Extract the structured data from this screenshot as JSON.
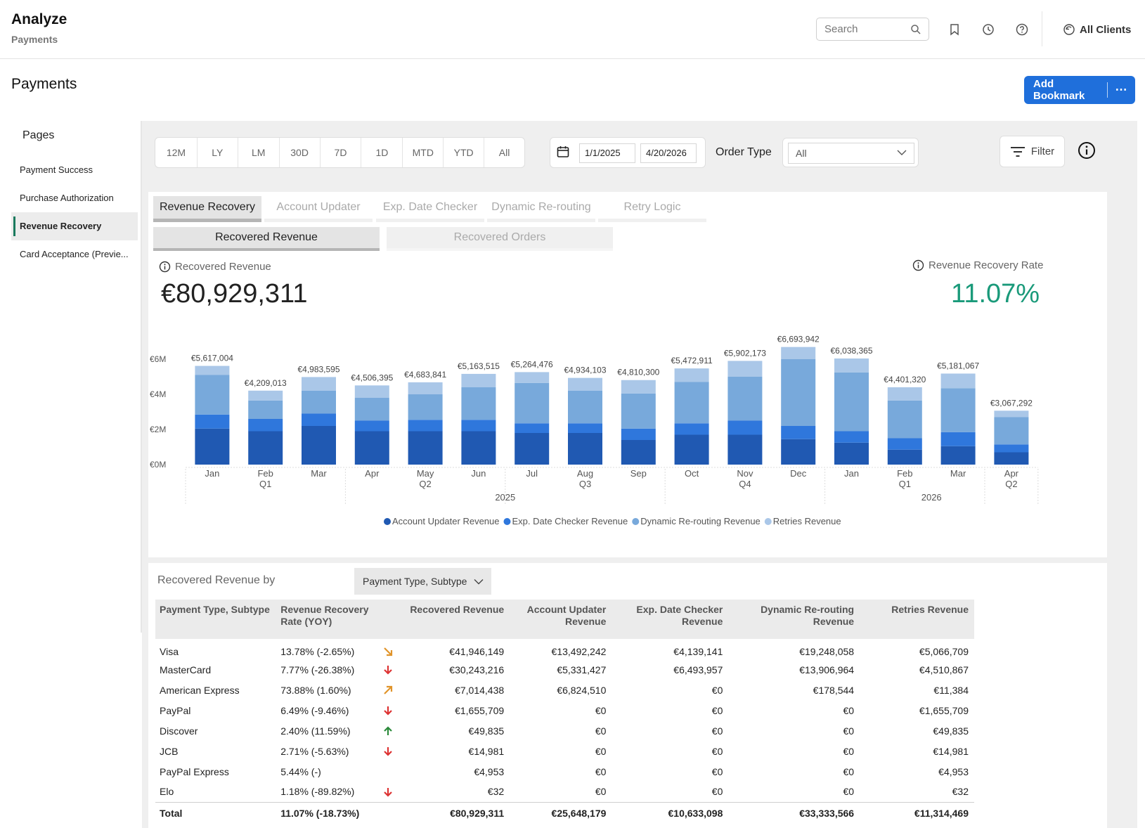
{
  "header": {
    "app_title": "Analyze",
    "app_subtitle": "Payments",
    "search_placeholder": "Search",
    "clients_label": "All Clients"
  },
  "page": {
    "title": "Payments",
    "add_bookmark": "Add Bookmark",
    "more": "⋯"
  },
  "sidebar": {
    "heading": "Pages",
    "items": [
      {
        "label": "Payment Success",
        "active": false
      },
      {
        "label": "Purchase Authorization",
        "active": false
      },
      {
        "label": "Revenue Recovery",
        "active": true
      },
      {
        "label": "Card Acceptance (Previe...",
        "active": false
      }
    ]
  },
  "filters": {
    "periods": [
      "12M",
      "LY",
      "LM",
      "30D",
      "7D",
      "1D",
      "MTD",
      "YTD",
      "All"
    ],
    "start_date": "1/1/2025",
    "end_date": "4/20/2026",
    "order_type_label": "Order Type",
    "order_type_value": "All",
    "filter_label": "Filter"
  },
  "tabs": [
    "Revenue Recovery",
    "Account Updater",
    "Exp. Date Checker",
    "Dynamic Re-routing",
    "Retry Logic"
  ],
  "subtabs": [
    "Recovered Revenue",
    "Recovered Orders"
  ],
  "kpis": {
    "recovered_label": "Recovered Revenue",
    "recovered_value": "€80,929,311",
    "rate_label": "Revenue Recovery Rate",
    "rate_value": "11.07%"
  },
  "colors": {
    "account_updater": "#2059b2",
    "exp_date_checker": "#2f77dc",
    "dynamic_rerouting": "#78a9db",
    "retries": "#aac7e8",
    "rate_green": "#1a9a7a",
    "primary_button": "#1f6fdb"
  },
  "chart_data": {
    "type": "bar",
    "stacked": true,
    "categories": [
      "Jan",
      "Feb",
      "Mar",
      "Apr",
      "May",
      "Jun",
      "Jul",
      "Aug",
      "Sep",
      "Oct",
      "Nov",
      "Dec",
      "Jan",
      "Feb",
      "Mar",
      "Apr"
    ],
    "quarter_labels": [
      "",
      "Q1",
      "",
      "",
      "Q2",
      "",
      "",
      "Q3",
      "",
      "",
      "Q4",
      "",
      "",
      "Q1",
      "",
      "Q2"
    ],
    "years": [
      {
        "label": "2025",
        "span": 12
      },
      {
        "label": "2026",
        "span": 4
      }
    ],
    "totals": [
      5617004,
      4209013,
      4983595,
      4506395,
      4683841,
      5163515,
      5264476,
      4934103,
      4810300,
      5472911,
      5902173,
      6693942,
      6038365,
      4401320,
      5181067,
      3067292
    ],
    "total_labels": [
      "€5,617,004",
      "€4,209,013",
      "€4,983,595",
      "€4,506,395",
      "€4,683,841",
      "€5,163,515",
      "€5,264,476",
      "€4,934,103",
      "€4,810,300",
      "€5,472,911",
      "€5,902,173",
      "€6,693,942",
      "€6,038,365",
      "€4,401,320",
      "€5,181,067",
      "€3,067,292"
    ],
    "series": [
      {
        "name": "Account Updater Revenue",
        "values": [
          2050000,
          1900000,
          2200000,
          1900000,
          1900000,
          1900000,
          1800000,
          1800000,
          1400000,
          1700000,
          1700000,
          1450000,
          1250000,
          850000,
          1050000,
          700000
        ]
      },
      {
        "name": "Exp. Date Checker Revenue",
        "values": [
          800000,
          700000,
          700000,
          600000,
          650000,
          650000,
          550000,
          550000,
          650000,
          650000,
          800000,
          750000,
          650000,
          650000,
          800000,
          450000
        ]
      },
      {
        "name": "Dynamic Re-routing Revenue",
        "values": [
          2250000,
          1050000,
          1300000,
          1300000,
          1450000,
          1850000,
          2300000,
          1850000,
          2000000,
          2350000,
          2500000,
          3800000,
          3350000,
          2150000,
          2500000,
          1550000
        ]
      },
      {
        "name": "Retries Revenue",
        "values": [
          517004,
          559013,
          783595,
          706395,
          683841,
          763515,
          614476,
          734103,
          760300,
          772911,
          902173,
          693942,
          788365,
          751320,
          831067,
          367292
        ]
      }
    ],
    "yticks": [
      "€0M",
      "€2M",
      "€4M",
      "€6M"
    ],
    "ylim": [
      0,
      6000000
    ],
    "legend_position": "bottom"
  },
  "breakdown": {
    "label": "Recovered Revenue by",
    "group_by": "Payment Type, Subtype",
    "columns": [
      "Payment Type, Subtype",
      "Revenue Recovery Rate (YOY)",
      "",
      "Recovered Revenue",
      "Account Updater Revenue",
      "Exp. Date Checker Revenue",
      "Dynamic Re-routing Revenue",
      "Retries Revenue"
    ],
    "rows": [
      {
        "type": "Visa",
        "rate": "13.78% (-2.65%)",
        "trend": "down-right",
        "recovered": "€41,946,149",
        "account_updater": "€13,492,242",
        "exp_date": "€4,139,141",
        "dynamic": "€19,248,058",
        "retries": "€5,066,709"
      },
      {
        "type": "MasterCard",
        "rate": "7.77% (-26.38%)",
        "trend": "down",
        "recovered": "€30,243,216",
        "account_updater": "€5,331,427",
        "exp_date": "€6,493,957",
        "dynamic": "€13,906,964",
        "retries": "€4,510,867"
      },
      {
        "type": "American Express",
        "rate": "73.88% (1.60%)",
        "trend": "up-right",
        "recovered": "€7,014,438",
        "account_updater": "€6,824,510",
        "exp_date": "€0",
        "dynamic": "€178,544",
        "retries": "€11,384"
      },
      {
        "type": "PayPal",
        "rate": "6.49% (-9.46%)",
        "trend": "down",
        "recovered": "€1,655,709",
        "account_updater": "€0",
        "exp_date": "€0",
        "dynamic": "€0",
        "retries": "€1,655,709"
      },
      {
        "type": "Discover",
        "rate": "2.40% (11.59%)",
        "trend": "up",
        "recovered": "€49,835",
        "account_updater": "€0",
        "exp_date": "€0",
        "dynamic": "€0",
        "retries": "€49,835"
      },
      {
        "type": "JCB",
        "rate": "2.71% (-5.63%)",
        "trend": "down",
        "recovered": "€14,981",
        "account_updater": "€0",
        "exp_date": "€0",
        "dynamic": "€0",
        "retries": "€14,981"
      },
      {
        "type": "PayPal Express",
        "rate": "5.44% (-)",
        "trend": "",
        "recovered": "€4,953",
        "account_updater": "€0",
        "exp_date": "€0",
        "dynamic": "€0",
        "retries": "€4,953"
      },
      {
        "type": "Elo",
        "rate": "1.18% (-89.82%)",
        "trend": "down",
        "recovered": "€32",
        "account_updater": "€0",
        "exp_date": "€0",
        "dynamic": "€0",
        "retries": "€32"
      }
    ],
    "total": {
      "type": "Total",
      "rate": "11.07% (-18.73%)",
      "recovered": "€80,929,311",
      "account_updater": "€25,648,179",
      "exp_date": "€10,633,098",
      "dynamic": "€33,333,566",
      "retries": "€11,314,469"
    }
  }
}
